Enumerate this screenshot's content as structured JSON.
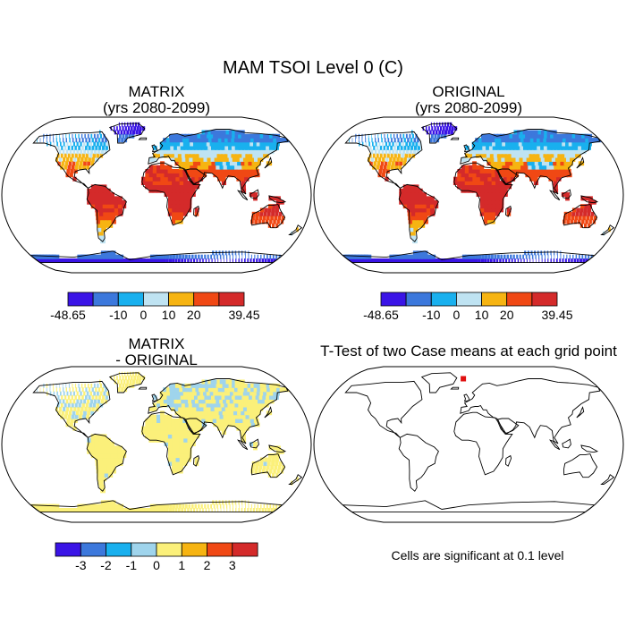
{
  "main_title": "MAM TSOI Level 0 (C)",
  "chart_data": [
    {
      "id": "matrix",
      "type": "heatmap",
      "title_lines": [
        "MATRIX",
        "(yrs 2080-2099)"
      ],
      "palette": [
        "#3a14e6",
        "#3c78dc",
        "#19b0ee",
        "#bfe3f2",
        "#f6b412",
        "#f04814",
        "#d42a2a"
      ],
      "colorbar_labels": [
        "-48.65",
        "",
        "-10",
        "0",
        "10",
        "20",
        "",
        "39.45"
      ],
      "value_range": [
        -48.65,
        39.45
      ]
    },
    {
      "id": "original",
      "type": "heatmap",
      "title_lines": [
        "ORIGINAL",
        "(yrs 2080-2099)"
      ],
      "palette": [
        "#3a14e6",
        "#3c78dc",
        "#19b0ee",
        "#bfe3f2",
        "#f6b412",
        "#f04814",
        "#d42a2a"
      ],
      "colorbar_labels": [
        "-48.65",
        "",
        "-10",
        "0",
        "10",
        "20",
        "",
        "39.45"
      ],
      "value_range": [
        -48.65,
        39.45
      ]
    },
    {
      "id": "difference",
      "type": "heatmap",
      "title_lines": [
        "MATRIX",
        "- ORIGINAL"
      ],
      "palette": [
        "#3a14e6",
        "#3c78dc",
        "#19b0ee",
        "#9fd4ec",
        "#fbf07a",
        "#f6b412",
        "#f04814",
        "#d42a2a"
      ],
      "colorbar_labels": [
        "-3",
        "-2",
        "-1",
        "0",
        "1",
        "2",
        "3"
      ],
      "value_range": [
        -3,
        3
      ]
    },
    {
      "id": "ttest",
      "type": "heatmap",
      "title_lines": [
        "T-Test of two Case means at each grid point"
      ],
      "note": "Cells are significant at 0.1 level",
      "significant_cells": 1
    }
  ]
}
